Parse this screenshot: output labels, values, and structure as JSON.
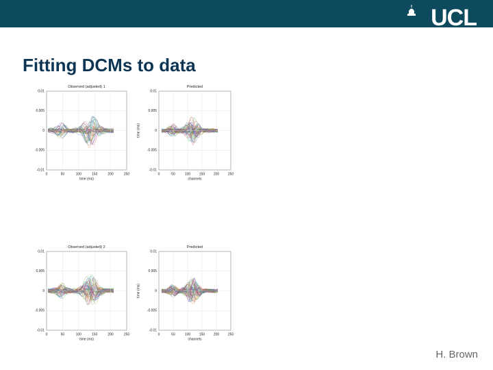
{
  "header": {
    "logo": "UCL"
  },
  "title": "Fitting DCMs to data",
  "panels": [
    {
      "title": "Observed (adjusted) 1",
      "xlabel": "time (ms)",
      "ylabel": null,
      "yticks": [
        "0.01",
        "0.005",
        "0",
        "-0.005",
        "-0.01"
      ],
      "xticks": [
        "0",
        "50",
        "100",
        "150",
        "200",
        "250"
      ]
    },
    {
      "title": "Predicted",
      "xlabel": "channels",
      "ylabel": "time (ms)",
      "yticks": [
        "0.01",
        "0.005",
        "0",
        "-0.005",
        "-0.01"
      ],
      "xticks": [
        "0",
        "50",
        "100",
        "150",
        "200",
        "250"
      ]
    },
    {
      "title": "Observed (adjusted) 2",
      "xlabel": "time (ms)",
      "ylabel": null,
      "yticks": [
        "0.01",
        "0.005",
        "0",
        "-0.005",
        "-0.01"
      ],
      "xticks": [
        "0",
        "50",
        "100",
        "150",
        "200",
        "250"
      ]
    },
    {
      "title": "Predicted",
      "xlabel": "channels",
      "ylabel": "time (ms)",
      "yticks": [
        "0.01",
        "0.005",
        "0",
        "-0.005",
        "-0.01"
      ],
      "xticks": [
        "0",
        "50",
        "100",
        "150",
        "200",
        "250"
      ]
    }
  ],
  "footer": "H. Brown"
}
